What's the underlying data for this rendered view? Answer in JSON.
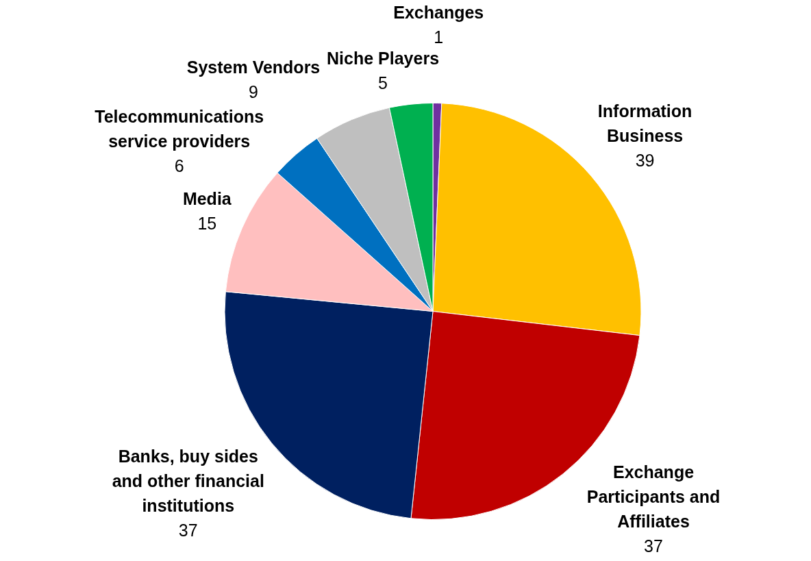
{
  "chart_data": {
    "type": "pie",
    "categories": [
      "Exchanges",
      "Information Business",
      "Exchange Participants and Affiliates",
      "Banks, buy sides and other financial institutions",
      "Media",
      "Telecommunications service providers",
      "System Vendors",
      "Niche Players"
    ],
    "values": [
      1,
      39,
      37,
      37,
      15,
      6,
      9,
      5
    ],
    "colors": [
      "#7030a0",
      "#ffc000",
      "#c00000",
      "#002060",
      "#ffbfbf",
      "#0070c0",
      "#bfbfbf",
      "#00b050"
    ],
    "data_labels": true,
    "legend": false
  }
}
